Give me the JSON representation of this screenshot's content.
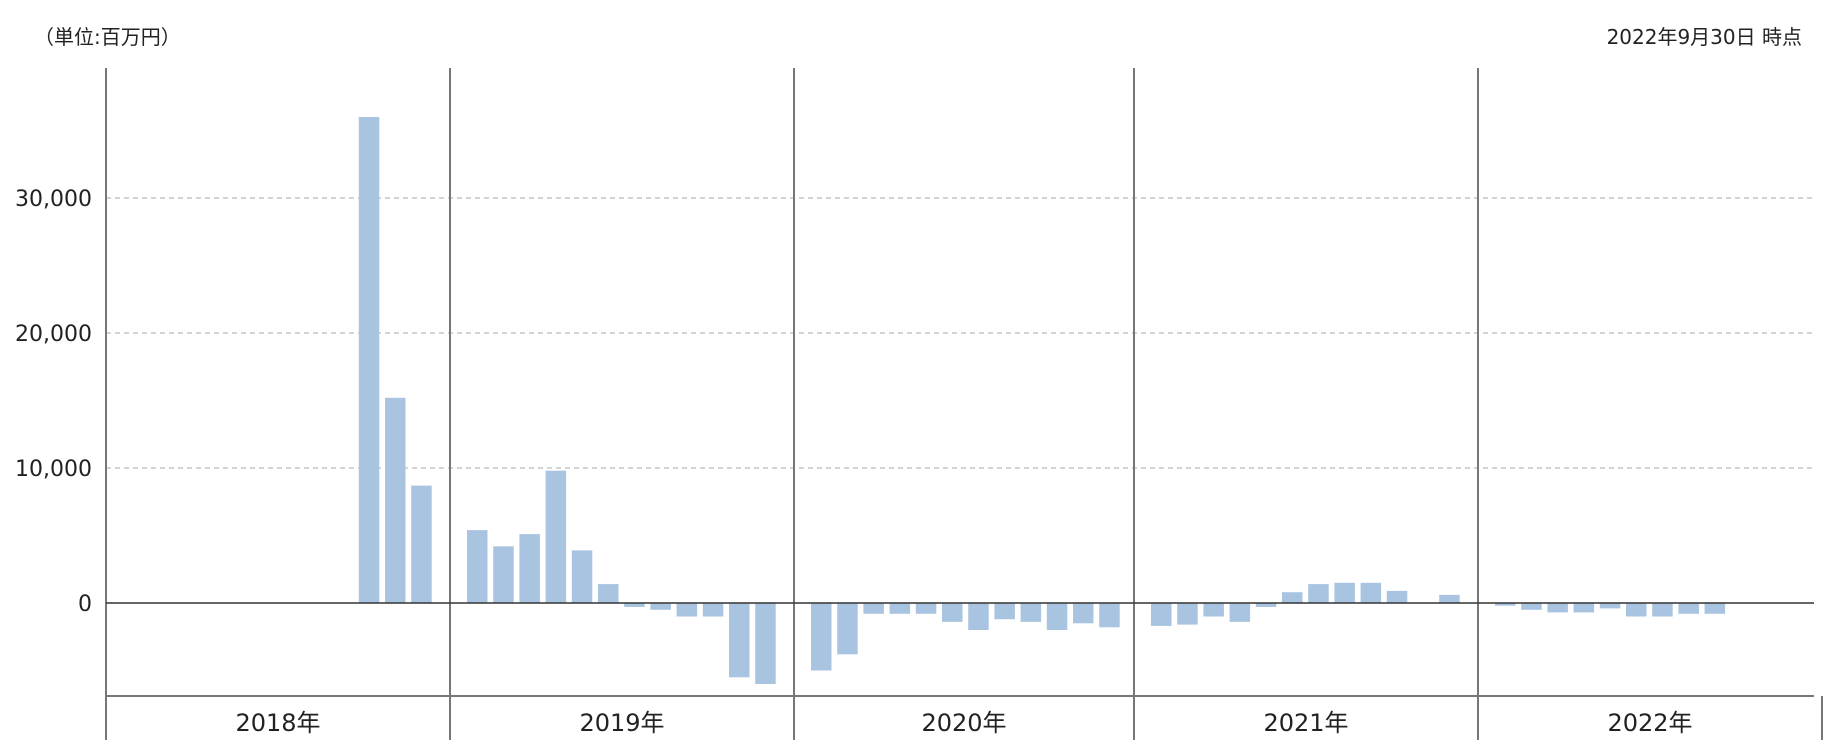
{
  "unit_label": "（単位:百万円）",
  "as_of_label": "2022年9月30日 時点",
  "colors": {
    "bar": "#a9c4e0",
    "axis": "#333333",
    "grid": "#bbbbbb",
    "divider": "#777777"
  },
  "chart_data": {
    "type": "bar",
    "title": "",
    "xlabel": "",
    "ylabel": "",
    "unit": "百万円",
    "as_of": "2022年9月30日 時点",
    "ylim": [
      -7000,
      40000
    ],
    "yticks": [
      0,
      10000,
      20000,
      30000
    ],
    "ytick_labels": [
      "0",
      "10,000",
      "20,000",
      "30,000"
    ],
    "grid": true,
    "legend": "none",
    "years": [
      "2018年",
      "2019年",
      "2020年",
      "2021年",
      "2022年"
    ],
    "months_per_year": 13,
    "series": [
      {
        "values": [
          [
            null,
            null,
            null,
            null,
            null,
            null,
            null,
            null,
            null,
            36000,
            15200,
            8700,
            null
          ],
          [
            5400,
            4200,
            5100,
            9800,
            3900,
            1400,
            -300,
            -500,
            -1000,
            -1000,
            -5500,
            -6000,
            null
          ],
          [
            -5000,
            -3800,
            -800,
            -800,
            -800,
            -1400,
            -2000,
            -1200,
            -1400,
            -2000,
            -1500,
            -1800,
            null
          ],
          [
            -1700,
            -1600,
            -1000,
            -1400,
            -300,
            800,
            1400,
            1500,
            1500,
            900,
            null,
            600,
            null
          ],
          [
            -200,
            -500,
            -700,
            -700,
            -400,
            -1000,
            -1000,
            -800,
            -800,
            null,
            null,
            null,
            null
          ]
        ]
      }
    ]
  }
}
